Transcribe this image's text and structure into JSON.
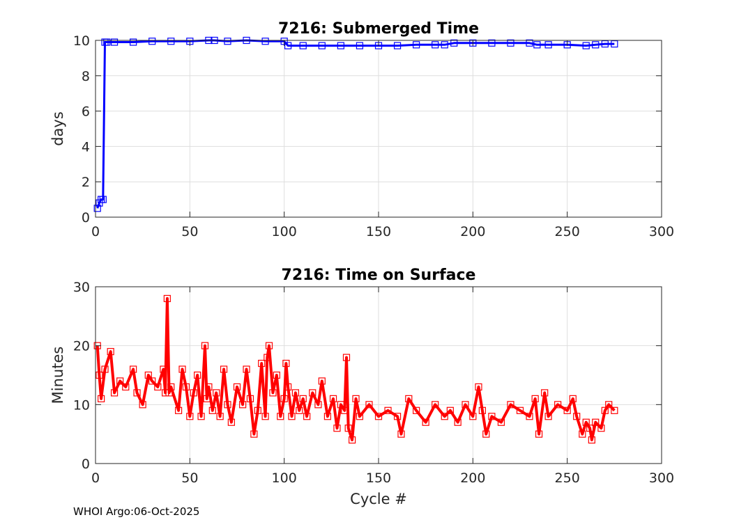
{
  "footer": "WHOI Argo:06-Oct-2025",
  "chart_data": [
    {
      "type": "line",
      "title": "7216: Submerged Time",
      "xlabel": "",
      "ylabel": "days",
      "xlim": [
        0,
        300
      ],
      "ylim": [
        0,
        10
      ],
      "xticks": [
        0,
        50,
        100,
        150,
        200,
        250,
        300
      ],
      "yticks": [
        0,
        2,
        4,
        6,
        8,
        10
      ],
      "grid": true,
      "marker": "square",
      "color": "#0000ff",
      "series": [
        {
          "x": [
            1,
            2,
            3,
            4,
            5,
            6,
            10,
            20,
            30,
            40,
            50,
            60,
            63,
            70,
            80,
            90,
            100,
            102,
            110,
            120,
            130,
            140,
            150,
            160,
            170,
            180,
            185,
            190,
            200,
            210,
            220,
            230,
            234,
            240,
            250,
            260,
            265,
            270,
            275
          ],
          "values": [
            0.5,
            0.8,
            1.0,
            1.0,
            9.9,
            9.9,
            9.9,
            9.9,
            9.95,
            9.95,
            9.95,
            10.0,
            10.0,
            9.95,
            10.0,
            9.95,
            9.95,
            9.7,
            9.7,
            9.7,
            9.7,
            9.7,
            9.7,
            9.7,
            9.75,
            9.75,
            9.75,
            9.85,
            9.85,
            9.85,
            9.85,
            9.85,
            9.75,
            9.75,
            9.75,
            9.7,
            9.75,
            9.8,
            9.8
          ]
        }
      ]
    },
    {
      "type": "line",
      "title": "7216: Time on Surface",
      "xlabel": "Cycle #",
      "ylabel": "Minutes",
      "xlim": [
        0,
        300
      ],
      "ylim": [
        0,
        30
      ],
      "xticks": [
        0,
        50,
        100,
        150,
        200,
        250,
        300
      ],
      "yticks": [
        0,
        10,
        20,
        30
      ],
      "grid": true,
      "marker": "square",
      "color": "#ff0000",
      "series": [
        {
          "x": [
            1,
            2,
            3,
            5,
            8,
            10,
            13,
            16,
            20,
            22,
            25,
            28,
            30,
            33,
            36,
            37,
            38,
            39,
            40,
            44,
            46,
            48,
            50,
            52,
            54,
            56,
            58,
            59,
            60,
            62,
            64,
            66,
            68,
            70,
            72,
            75,
            78,
            80,
            82,
            84,
            86,
            88,
            90,
            91,
            92,
            94,
            96,
            98,
            100,
            101,
            102,
            104,
            106,
            108,
            110,
            112,
            115,
            118,
            120,
            123,
            126,
            128,
            130,
            132,
            133,
            134,
            136,
            138,
            140,
            145,
            150,
            155,
            160,
            162,
            166,
            170,
            175,
            180,
            185,
            188,
            192,
            196,
            200,
            203,
            205,
            207,
            210,
            215,
            220,
            225,
            230,
            233,
            235,
            238,
            240,
            245,
            250,
            253,
            255,
            258,
            260,
            262,
            263,
            265,
            268,
            270,
            272,
            275
          ],
          "values": [
            20,
            15,
            11,
            16,
            19,
            12,
            14,
            13,
            16,
            12,
            10,
            15,
            14,
            13,
            16,
            12,
            28,
            12,
            13,
            9,
            16,
            13,
            8,
            12,
            15,
            8,
            20,
            11,
            13,
            9,
            12,
            8,
            16,
            10,
            7,
            13,
            10,
            16,
            11,
            5,
            9,
            17,
            8,
            18,
            20,
            12,
            15,
            8,
            11,
            17,
            13,
            8,
            12,
            9,
            11,
            8,
            12,
            10,
            14,
            8,
            11,
            6,
            10,
            9,
            18,
            6,
            4,
            11,
            8,
            10,
            8,
            9,
            8,
            5,
            11,
            9,
            7,
            10,
            8,
            9,
            7,
            10,
            8,
            13,
            9,
            5,
            8,
            7,
            10,
            9,
            8,
            11,
            5,
            12,
            8,
            10,
            9,
            11,
            8,
            5,
            7,
            6,
            4,
            7,
            6,
            9,
            10,
            9
          ]
        }
      ]
    }
  ]
}
